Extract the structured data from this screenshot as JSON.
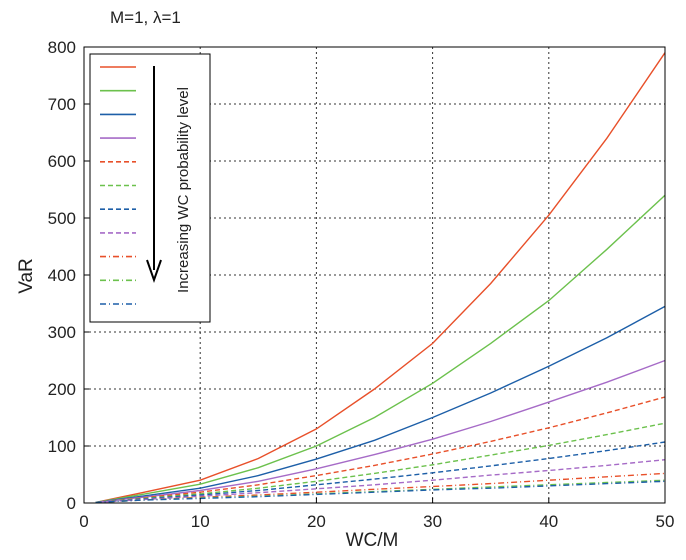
{
  "chart_data": {
    "type": "line",
    "title": "M=1, λ=1",
    "xlabel": "WC/M",
    "ylabel": "VaR",
    "xlim": [
      0,
      50
    ],
    "ylim": [
      0,
      800
    ],
    "xticks": [
      0,
      10,
      20,
      30,
      40,
      50
    ],
    "yticks": [
      0,
      100,
      200,
      300,
      400,
      500,
      600,
      700,
      800
    ],
    "grid": true,
    "legend_position": "top-left",
    "annotation": "Increasing WC probability level",
    "x": [
      1,
      5,
      10,
      15,
      20,
      25,
      30,
      35,
      40,
      45,
      50
    ],
    "series": [
      {
        "name": "",
        "color": "#e8502a",
        "style": "solid",
        "values": [
          1,
          18,
          40,
          78,
          130,
          200,
          280,
          385,
          505,
          640,
          790
        ]
      },
      {
        "name": "",
        "color": "#6cc14d",
        "style": "solid",
        "values": [
          1,
          15,
          33,
          62,
          100,
          150,
          210,
          280,
          355,
          445,
          540
        ]
      },
      {
        "name": "",
        "color": "#1d5fa8",
        "style": "solid",
        "values": [
          1,
          12,
          26,
          48,
          77,
          110,
          150,
          193,
          240,
          290,
          345
        ]
      },
      {
        "name": "",
        "color": "#a66bc7",
        "style": "solid",
        "values": [
          1,
          10,
          22,
          38,
          60,
          85,
          112,
          143,
          177,
          212,
          250
        ]
      },
      {
        "name": "",
        "color": "#e8502a",
        "style": "dashed",
        "values": [
          1,
          9,
          19,
          32,
          48,
          66,
          86,
          108,
          132,
          158,
          186
        ]
      },
      {
        "name": "",
        "color": "#6cc14d",
        "style": "dashed",
        "values": [
          1,
          8,
          16,
          26,
          38,
          52,
          67,
          84,
          101,
          120,
          140
        ]
      },
      {
        "name": "",
        "color": "#1d5fa8",
        "style": "dashed",
        "values": [
          1,
          7,
          14,
          22,
          32,
          42,
          53,
          65,
          78,
          92,
          107
        ]
      },
      {
        "name": "",
        "color": "#a66bc7",
        "style": "dashed",
        "values": [
          1,
          6,
          12,
          18,
          25,
          32,
          40,
          49,
          57,
          66,
          76
        ]
      },
      {
        "name": "",
        "color": "#e8502a",
        "style": "dashdot",
        "values": [
          1,
          5,
          10,
          14,
          19,
          24,
          29,
          34,
          40,
          46,
          52
        ]
      },
      {
        "name": "",
        "color": "#6cc14d",
        "style": "dashdot",
        "values": [
          1,
          5,
          9,
          12,
          16,
          20,
          24,
          28,
          32,
          36,
          40
        ]
      },
      {
        "name": "",
        "color": "#1d5fa8",
        "style": "dashdot",
        "values": [
          1,
          5,
          8,
          11,
          15,
          19,
          23,
          26,
          30,
          34,
          38
        ]
      }
    ]
  }
}
